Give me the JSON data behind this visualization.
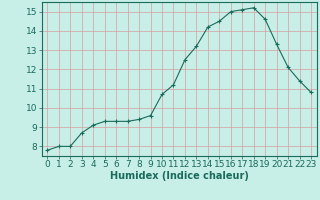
{
  "x": [
    0,
    1,
    2,
    3,
    4,
    5,
    6,
    7,
    8,
    9,
    10,
    11,
    12,
    13,
    14,
    15,
    16,
    17,
    18,
    19,
    20,
    21,
    22,
    23
  ],
  "y": [
    7.8,
    8.0,
    8.0,
    8.7,
    9.1,
    9.3,
    9.3,
    9.3,
    9.4,
    9.6,
    10.7,
    11.2,
    12.5,
    13.2,
    14.2,
    14.5,
    15.0,
    15.1,
    15.2,
    14.6,
    13.3,
    12.1,
    11.4,
    10.8
  ],
  "line_color": "#1a6b5a",
  "marker": "+",
  "marker_size": 3,
  "bg_color": "#c8eee8",
  "grid_color": "#d4a0a0",
  "xlabel": "Humidex (Indice chaleur)",
  "xlim": [
    -0.5,
    23.5
  ],
  "ylim": [
    7.5,
    15.5
  ],
  "yticks": [
    8,
    9,
    10,
    11,
    12,
    13,
    14,
    15
  ],
  "xticks": [
    0,
    1,
    2,
    3,
    4,
    5,
    6,
    7,
    8,
    9,
    10,
    11,
    12,
    13,
    14,
    15,
    16,
    17,
    18,
    19,
    20,
    21,
    22,
    23
  ],
  "label_fontsize": 7,
  "tick_fontsize": 6.5
}
